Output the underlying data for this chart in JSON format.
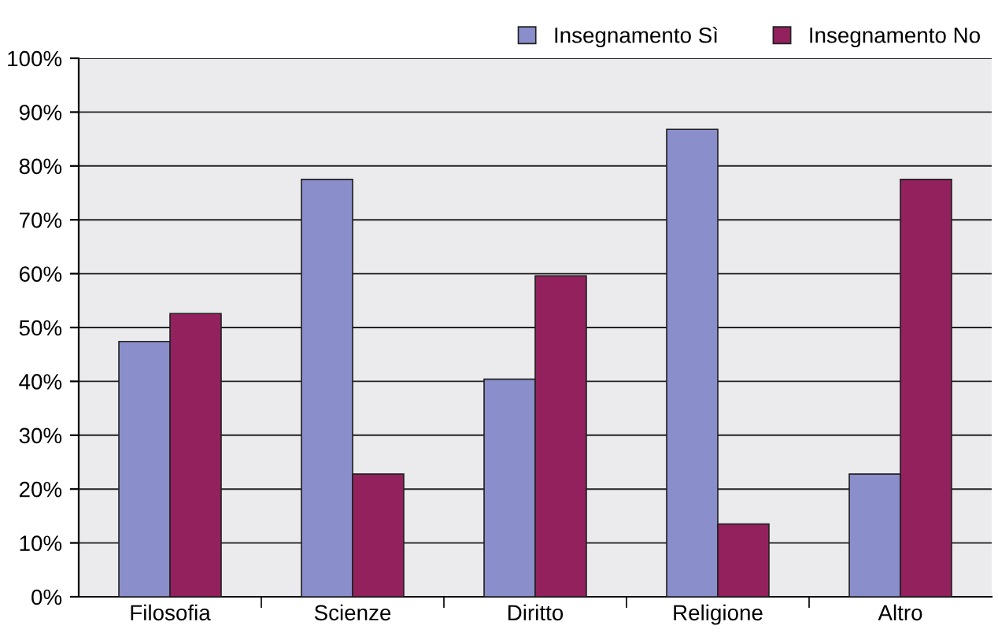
{
  "chart_data": {
    "type": "bar",
    "categories": [
      "Filosofia",
      "Scienze",
      "Diritto",
      "Religione",
      "Altro"
    ],
    "series": [
      {
        "name": "Insegnamento Sì",
        "color": "#8a8ecb",
        "values": [
          47.4,
          77.5,
          40.4,
          86.8,
          22.8
        ]
      },
      {
        "name": "Insegnamento No",
        "color": "#93215e",
        "values": [
          52.6,
          22.8,
          59.6,
          13.5,
          77.5
        ]
      }
    ],
    "ylim": [
      0,
      100
    ],
    "yticks": [
      {
        "value": 0,
        "label": "0%"
      },
      {
        "value": 10,
        "label": "10%"
      },
      {
        "value": 20,
        "label": "20%"
      },
      {
        "value": 30,
        "label": "30%"
      },
      {
        "value": 40,
        "label": "40%"
      },
      {
        "value": 50,
        "label": "50%"
      },
      {
        "value": 60,
        "label": "60%"
      },
      {
        "value": 70,
        "label": "70%"
      },
      {
        "value": 80,
        "label": "80%"
      },
      {
        "value": 90,
        "label": "90%"
      },
      {
        "value": 100,
        "label": "100%"
      }
    ],
    "grid": "y",
    "legend": "top right"
  }
}
